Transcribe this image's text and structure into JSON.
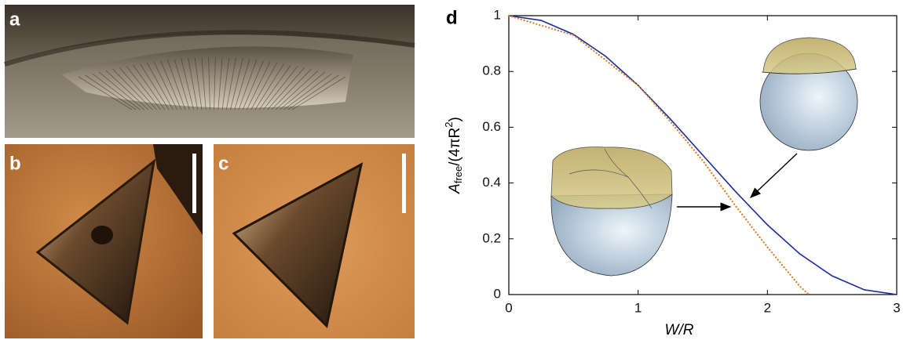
{
  "panel_labels": [
    "a",
    "b",
    "c"
  ],
  "chart_data": {
    "type": "line",
    "panel_label": "d",
    "xlabel": "W/R",
    "ylabel_parts": [
      "A",
      "free",
      "/(4πR",
      "2",
      ")"
    ],
    "xlim": [
      0,
      3
    ],
    "ylim": [
      0,
      1
    ],
    "xticks": [
      0,
      1,
      2,
      3
    ],
    "yticks": [
      0,
      0.2,
      0.4,
      0.6,
      0.8,
      1
    ],
    "grid": false,
    "series": [
      {
        "color": "#1a2d9c",
        "linestyle": "solid",
        "x": [
          0,
          0.25,
          0.5,
          0.75,
          1,
          1.25,
          1.5,
          1.75,
          2,
          2.25,
          2.5,
          2.75,
          3
        ],
        "values": [
          1,
          0.983,
          0.933,
          0.854,
          0.75,
          0.629,
          0.5,
          0.371,
          0.25,
          0.146,
          0.067,
          0.017,
          0
        ]
      },
      {
        "color": "#e07a20",
        "linestyle": "dotted",
        "x": [
          0,
          0.5,
          1,
          1.25,
          1.5,
          1.75,
          2,
          2.25,
          2.32
        ],
        "values": [
          1,
          0.93,
          0.75,
          0.62,
          0.48,
          0.32,
          0.17,
          0.03,
          0
        ]
      }
    ]
  }
}
